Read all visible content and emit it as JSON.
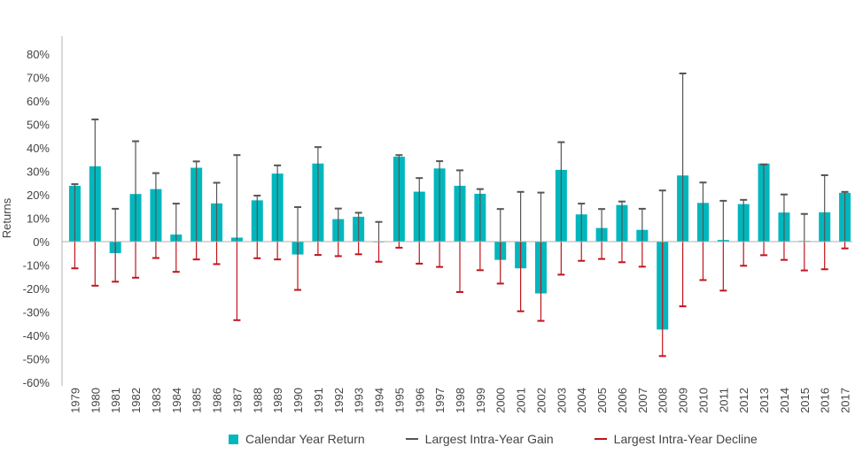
{
  "chart_data": {
    "type": "bar",
    "title": "",
    "xlabel": "",
    "ylabel": "Returns",
    "ylim": [
      -60,
      80
    ],
    "yticks": [
      "80%",
      "70%",
      "60%",
      "50%",
      "40%",
      "30%",
      "20%",
      "10%",
      "0%",
      "-10%",
      "-20%",
      "-30%",
      "-40%",
      "-50%",
      "-60%"
    ],
    "ytick_values": [
      80,
      70,
      60,
      50,
      40,
      30,
      20,
      10,
      0,
      -10,
      -20,
      -30,
      -40,
      -50,
      -60
    ],
    "categories": [
      "1979",
      "1980",
      "1981",
      "1982",
      "1983",
      "1984",
      "1985",
      "1986",
      "1987",
      "1988",
      "1989",
      "1990",
      "1991",
      "1992",
      "1993",
      "1994",
      "1995",
      "1996",
      "1997",
      "1998",
      "1999",
      "2000",
      "2001",
      "2002",
      "2003",
      "2004",
      "2005",
      "2006",
      "2007",
      "2008",
      "2009",
      "2010",
      "2011",
      "2012",
      "2013",
      "2014",
      "2015",
      "2016",
      "2017"
    ],
    "series": [
      {
        "name": "Calendar Year Return",
        "color": "#00b7bd",
        "values": [
          23.8,
          32.1,
          -4.9,
          20.3,
          22.4,
          3.0,
          31.5,
          16.3,
          1.7,
          17.6,
          29.0,
          -5.5,
          33.3,
          9.6,
          10.6,
          0.0,
          36.2,
          21.3,
          31.2,
          23.8,
          20.4,
          -7.8,
          -11.4,
          -22.1,
          30.6,
          11.6,
          5.8,
          15.6,
          5.0,
          -37.5,
          28.2,
          16.5,
          0.7,
          16.0,
          33.3,
          12.4,
          0.3,
          12.5,
          20.8
        ]
      },
      {
        "name": "Largest Intra-Year Gain",
        "color": "#555555",
        "values": [
          24.5,
          52.1,
          14.0,
          42.8,
          29.2,
          16.2,
          34.2,
          25.1,
          36.9,
          19.6,
          32.5,
          14.7,
          40.3,
          14.1,
          12.3,
          8.4,
          36.9,
          27.1,
          34.3,
          30.4,
          22.4,
          13.9,
          21.2,
          20.9,
          42.4,
          16.2,
          13.9,
          17.1,
          14.0,
          21.8,
          71.7,
          25.2,
          17.4,
          17.8,
          32.9,
          20.1,
          11.8,
          28.3,
          21.2
        ]
      },
      {
        "name": "Largest Intra-Year Decline",
        "color": "#c0141e",
        "values": [
          -11.4,
          -18.8,
          -17.1,
          -15.4,
          -7.0,
          -12.9,
          -7.6,
          -9.6,
          -33.5,
          -7.1,
          -7.6,
          -20.6,
          -5.7,
          -6.2,
          -5.4,
          -8.6,
          -2.6,
          -9.4,
          -10.8,
          -21.5,
          -12.2,
          -17.9,
          -29.7,
          -33.8,
          -14.1,
          -8.2,
          -7.4,
          -8.8,
          -10.7,
          -48.8,
          -27.6,
          -16.4,
          -20.9,
          -10.3,
          -5.8,
          -7.8,
          -12.3,
          -11.8,
          -2.9
        ]
      }
    ],
    "grid": false,
    "legend_position": "bottom"
  }
}
